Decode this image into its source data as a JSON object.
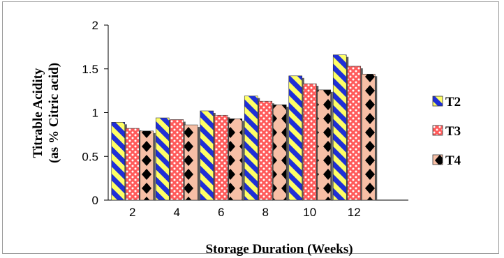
{
  "chart_data": {
    "type": "bar",
    "title": "",
    "xlabel": "Storage Duration (Weeks)",
    "ylabel_line1": "Titrable Acidity",
    "ylabel_line2": "(as % Citric acid)",
    "categories": [
      "2",
      "4",
      "6",
      "8",
      "10",
      "12"
    ],
    "ylim": [
      0,
      2
    ],
    "yticks": [
      "0",
      "0.5",
      "1",
      "1.5",
      "2"
    ],
    "grid": false,
    "legend_position": "right",
    "series": [
      {
        "name": "T2",
        "values": [
          0.89,
          0.94,
          1.02,
          1.19,
          1.42,
          1.66
        ],
        "colors": [
          "#ffff66",
          "#1f2fd6"
        ],
        "pattern": "diagonal-stripes"
      },
      {
        "name": "T3",
        "values": [
          0.82,
          0.92,
          0.97,
          1.13,
          1.33,
          1.53
        ],
        "colors": [
          "#ff5a5a",
          "#ffffff"
        ],
        "pattern": "checker"
      },
      {
        "name": "T4",
        "values": [
          0.79,
          0.86,
          0.93,
          1.09,
          1.26,
          1.44
        ],
        "colors": [
          "#f7bfa6",
          "#000000"
        ],
        "pattern": "diamonds"
      }
    ]
  }
}
